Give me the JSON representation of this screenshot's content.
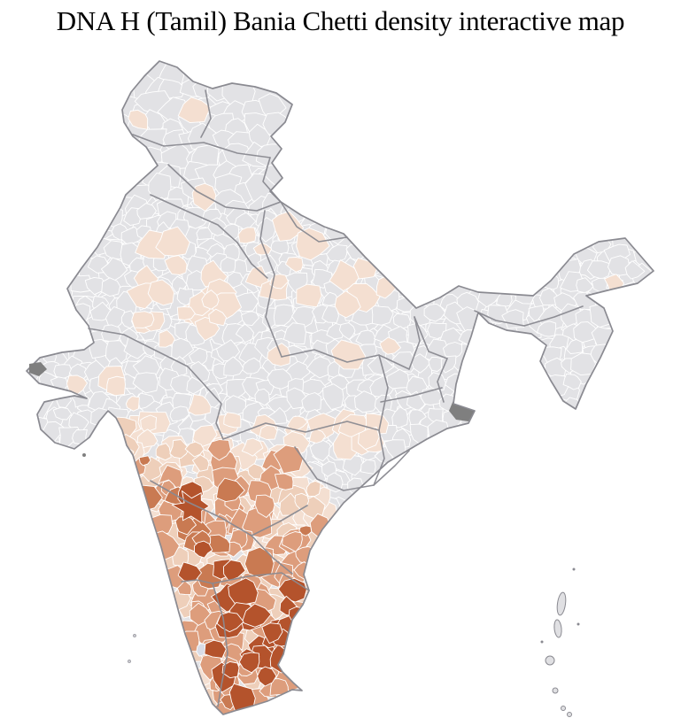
{
  "title": "DNA H (Tamil) Bania Chetti density interactive map",
  "map": {
    "name": "India district choropleth",
    "admin_level": "district",
    "background_color": "#ffffff",
    "base_region_color": "#e2e2e5",
    "district_border_color": "#ffffff",
    "state_border_color": "#8a8a91",
    "coastline_color": "#8a8a91",
    "no_data_patch_color": "#7f7f7f",
    "outlier_pale_color": "#d9dce6",
    "island_fill_color": "#e0e0e3",
    "density_levels": [
      {
        "id": "none",
        "color": "#e2e2e5"
      },
      {
        "id": "very_low",
        "color": "#f4dfd1"
      },
      {
        "id": "low",
        "color": "#eecfba"
      },
      {
        "id": "medium",
        "color": "#dd9d7c"
      },
      {
        "id": "high",
        "color": "#c97a52"
      },
      {
        "id": "very_high",
        "color": "#b4532c"
      }
    ],
    "region_density": [
      {
        "region": "Tamil Nadu core",
        "density": "very_high"
      },
      {
        "region": "Karnataka",
        "density": "medium"
      },
      {
        "region": "Kerala coast",
        "density": "medium"
      },
      {
        "region": "South Maharashtra (Pune belt)",
        "density": "medium"
      },
      {
        "region": "Telangana / Rayalaseema",
        "density": "low"
      },
      {
        "region": "Coastal Andhra (Krishna-Guntur)",
        "density": "medium"
      },
      {
        "region": "Gujarat (Surat / Ahmedabad pockets)",
        "density": "very_low"
      },
      {
        "region": "South-east Rajasthan pockets",
        "density": "very_low"
      },
      {
        "region": "North India",
        "density": "none"
      },
      {
        "region": "Northeast India",
        "density": "none"
      }
    ]
  }
}
